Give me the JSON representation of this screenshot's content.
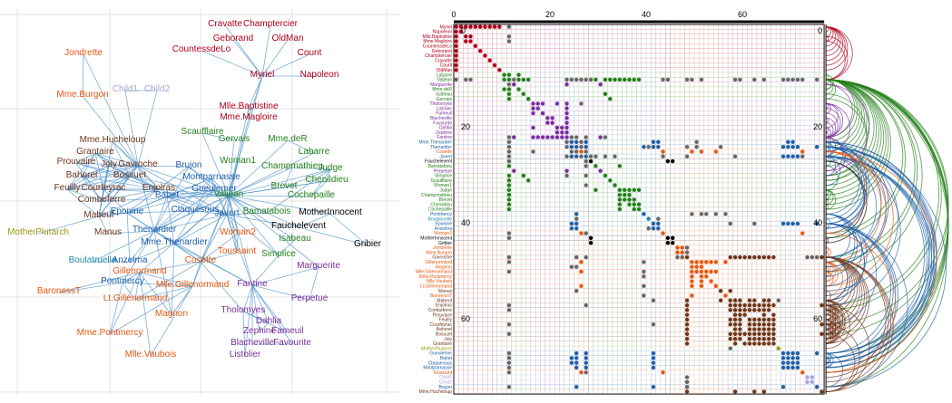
{
  "colors": {
    "red": "#b0001c",
    "lightpurple": "#a9a6d6",
    "orange": "#e8560f",
    "brown": "#6e3518",
    "green": "#23801a",
    "blue": "#1f5fa8",
    "black": "#000000",
    "purple": "#7a2e9e",
    "olive": "#9a9a10",
    "cyan": "#1e88a8",
    "edge": "#4f94cd"
  },
  "node_link": {
    "nodes": [
      {
        "label": "Cravatte",
        "color": "red"
      },
      {
        "label": "Champtercier",
        "color": "red"
      },
      {
        "label": "Geborand",
        "color": "red"
      },
      {
        "label": "OldMan",
        "color": "red"
      },
      {
        "label": "CountessdeLo",
        "color": "red"
      },
      {
        "label": "Count",
        "color": "red"
      },
      {
        "label": "Jondrette",
        "color": "orange"
      },
      {
        "label": "Myriel",
        "color": "red"
      },
      {
        "label": "Napoleon",
        "color": "red"
      },
      {
        "label": "Mme.Burgon",
        "color": "orange"
      },
      {
        "label": "Child1",
        "color": "lightpurple"
      },
      {
        "label": "Child2",
        "color": "lightpurple"
      },
      {
        "label": "Mlle.Baptistine",
        "color": "red"
      },
      {
        "label": "Mme.Magloire",
        "color": "red"
      },
      {
        "label": "Scaufflaire",
        "color": "green"
      },
      {
        "label": "Gervais",
        "color": "green"
      },
      {
        "label": "Mme.deR",
        "color": "green"
      },
      {
        "label": "Labarre",
        "color": "green"
      },
      {
        "label": "Mme.Hucheloup",
        "color": "brown"
      },
      {
        "label": "Grantaire",
        "color": "brown"
      },
      {
        "label": "Prouvaire",
        "color": "brown"
      },
      {
        "label": "Joly",
        "color": "brown"
      },
      {
        "label": "Gavroche",
        "color": "brown"
      },
      {
        "label": "Brujon",
        "color": "blue"
      },
      {
        "label": "Woman1",
        "color": "green"
      },
      {
        "label": "Champmathieu",
        "color": "green"
      },
      {
        "label": "Judge",
        "color": "green"
      },
      {
        "label": "Bahorel",
        "color": "brown"
      },
      {
        "label": "Bossuet",
        "color": "brown"
      },
      {
        "label": "Montparnasse",
        "color": "blue"
      },
      {
        "label": "Chenildieu",
        "color": "green"
      },
      {
        "label": "Feuilly",
        "color": "brown"
      },
      {
        "label": "Courfeyrac",
        "color": "brown"
      },
      {
        "label": "Enjolras",
        "color": "brown"
      },
      {
        "label": "Gueulemer",
        "color": "blue"
      },
      {
        "label": "Brevet",
        "color": "green"
      },
      {
        "label": "Combeferre",
        "color": "brown"
      },
      {
        "label": "Babet",
        "color": "blue"
      },
      {
        "label": "Valjean",
        "color": "green"
      },
      {
        "label": "Cochepaille",
        "color": "green"
      },
      {
        "label": "Mabeuf",
        "color": "brown"
      },
      {
        "label": "Eponine",
        "color": "blue"
      },
      {
        "label": "Claquesous",
        "color": "blue"
      },
      {
        "label": "Javert",
        "color": "blue"
      },
      {
        "label": "Bamatabois",
        "color": "green"
      },
      {
        "label": "MotherInnocent",
        "color": "black"
      },
      {
        "label": "MotherPlutarch",
        "color": "olive"
      },
      {
        "label": "Manus",
        "color": "brown"
      },
      {
        "label": "Thenardier",
        "color": "blue"
      },
      {
        "label": "Fauchelevent",
        "color": "black"
      },
      {
        "label": "Mme.Thenardier",
        "color": "blue"
      },
      {
        "label": "Woman2",
        "color": "orange"
      },
      {
        "label": "Isabeau",
        "color": "green"
      },
      {
        "label": "Gribier",
        "color": "black"
      },
      {
        "label": "Toussaint",
        "color": "orange"
      },
      {
        "label": "Simplice",
        "color": "green"
      },
      {
        "label": "Boulatruelle",
        "color": "cyan"
      },
      {
        "label": "Anzelma",
        "color": "blue"
      },
      {
        "label": "Cosette",
        "color": "orange"
      },
      {
        "label": "Marguerite",
        "color": "purple"
      },
      {
        "label": "Gillenormand",
        "color": "orange"
      },
      {
        "label": "Fantine",
        "color": "purple"
      },
      {
        "label": "Pontmercy",
        "color": "blue"
      },
      {
        "label": "Mlle.Gillenormand",
        "color": "orange"
      },
      {
        "label": "BaronessT",
        "color": "orange"
      },
      {
        "label": "Lt.Gillenormand",
        "color": "orange"
      },
      {
        "label": "Perpetue",
        "color": "purple"
      },
      {
        "label": "Magnon",
        "color": "orange"
      },
      {
        "label": "Tholomyes",
        "color": "purple"
      },
      {
        "label": "Dahlia",
        "color": "purple"
      },
      {
        "label": "Zephine",
        "color": "purple"
      },
      {
        "label": "Fameuil",
        "color": "purple"
      },
      {
        "label": "Mme.Pontmercy",
        "color": "orange"
      },
      {
        "label": "Blacheville",
        "color": "purple"
      },
      {
        "label": "Favourite",
        "color": "purple"
      },
      {
        "label": "Mlle.Vaubois",
        "color": "orange"
      },
      {
        "label": "Listolier",
        "color": "purple"
      }
    ]
  },
  "matrix": {
    "top_ticks": [
      "0",
      "20",
      "40",
      "60"
    ],
    "side_ticks": [
      "0",
      "20",
      "40",
      "60"
    ],
    "rows": [
      {
        "label": "Myriel",
        "color": "red"
      },
      {
        "label": "Napoleon",
        "color": "red"
      },
      {
        "label": "Mlle.Baptistine",
        "color": "red"
      },
      {
        "label": "Mme.Magloire",
        "color": "red"
      },
      {
        "label": "CountessdeLo",
        "color": "red"
      },
      {
        "label": "Geborand",
        "color": "red"
      },
      {
        "label": "Champtercier",
        "color": "red"
      },
      {
        "label": "Cravatte",
        "color": "red"
      },
      {
        "label": "Count",
        "color": "red"
      },
      {
        "label": "OldMan",
        "color": "red"
      },
      {
        "label": "Labarre",
        "color": "green"
      },
      {
        "label": "Valjean",
        "color": "green"
      },
      {
        "label": "Marguerite",
        "color": "purple"
      },
      {
        "label": "Mme.deR",
        "color": "green"
      },
      {
        "label": "Isabeau",
        "color": "green"
      },
      {
        "label": "Gervais",
        "color": "green"
      },
      {
        "label": "Tholomyes",
        "color": "purple"
      },
      {
        "label": "Listolier",
        "color": "purple"
      },
      {
        "label": "Fameuil",
        "color": "purple"
      },
      {
        "label": "Blacheville",
        "color": "purple"
      },
      {
        "label": "Favourite",
        "color": "purple"
      },
      {
        "label": "Dahlia",
        "color": "purple"
      },
      {
        "label": "Zephine",
        "color": "purple"
      },
      {
        "label": "Fantine",
        "color": "purple"
      },
      {
        "label": "Mme.Thenardier",
        "color": "blue"
      },
      {
        "label": "Thenardier",
        "color": "blue"
      },
      {
        "label": "Cosette",
        "color": "orange"
      },
      {
        "label": "Javert",
        "color": "blue"
      },
      {
        "label": "Fauchelevent",
        "color": "black"
      },
      {
        "label": "Bamatabois",
        "color": "green"
      },
      {
        "label": "Perpetue",
        "color": "purple"
      },
      {
        "label": "Simplice",
        "color": "green"
      },
      {
        "label": "Scaufflaire",
        "color": "green"
      },
      {
        "label": "Woman1",
        "color": "green"
      },
      {
        "label": "Judge",
        "color": "green"
      },
      {
        "label": "Champmathieu",
        "color": "green"
      },
      {
        "label": "Brevet",
        "color": "green"
      },
      {
        "label": "Chenildieu",
        "color": "green"
      },
      {
        "label": "Cochepaille",
        "color": "green"
      },
      {
        "label": "Pontmercy",
        "color": "blue"
      },
      {
        "label": "Boulatruelle",
        "color": "cyan"
      },
      {
        "label": "Eponine",
        "color": "blue"
      },
      {
        "label": "Anzelma",
        "color": "blue"
      },
      {
        "label": "Woman2",
        "color": "orange"
      },
      {
        "label": "MotherInnocent",
        "color": "black"
      },
      {
        "label": "Gribier",
        "color": "black"
      },
      {
        "label": "Jondrette",
        "color": "orange"
      },
      {
        "label": "Mme.Burgon",
        "color": "orange"
      },
      {
        "label": "Gavroche",
        "color": "brown"
      },
      {
        "label": "Gillenormand",
        "color": "orange"
      },
      {
        "label": "Magnon",
        "color": "orange"
      },
      {
        "label": "Mlle.Gillenormand",
        "color": "orange"
      },
      {
        "label": "Mme.Pontmercy",
        "color": "orange"
      },
      {
        "label": "Mlle.Vaubois",
        "color": "orange"
      },
      {
        "label": "Lt.Gillenormand",
        "color": "orange"
      },
      {
        "label": "Manus",
        "color": "brown"
      },
      {
        "label": "BaronessT",
        "color": "orange"
      },
      {
        "label": "Mabeuf",
        "color": "brown"
      },
      {
        "label": "Enjolras",
        "color": "brown"
      },
      {
        "label": "Combeferre",
        "color": "brown"
      },
      {
        "label": "Prouvaire",
        "color": "brown"
      },
      {
        "label": "Feuilly",
        "color": "brown"
      },
      {
        "label": "Courfeyrac",
        "color": "brown"
      },
      {
        "label": "Bahorel",
        "color": "brown"
      },
      {
        "label": "Bossuet",
        "color": "brown"
      },
      {
        "label": "Joly",
        "color": "brown"
      },
      {
        "label": "Grantaire",
        "color": "brown"
      },
      {
        "label": "MotherPlutarch",
        "color": "olive"
      },
      {
        "label": "Gueulemer",
        "color": "blue"
      },
      {
        "label": "Babet",
        "color": "blue"
      },
      {
        "label": "Claquesous",
        "color": "blue"
      },
      {
        "label": "Montparnasse",
        "color": "blue"
      },
      {
        "label": "Toussaint",
        "color": "orange"
      },
      {
        "label": "Child1",
        "color": "lightpurple"
      },
      {
        "label": "Child2",
        "color": "lightpurple"
      },
      {
        "label": "Brujon",
        "color": "blue"
      },
      {
        "label": "Mme.Hucheloup",
        "color": "brown"
      }
    ]
  }
}
